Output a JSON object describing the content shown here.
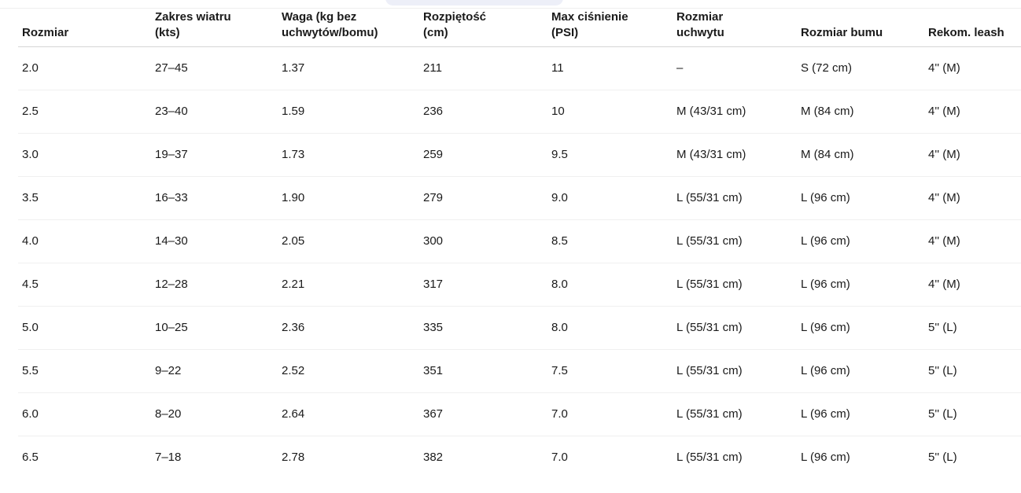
{
  "top_pill": {
    "visible": true
  },
  "table": {
    "columns": [
      {
        "id": "rozmiar",
        "label": "Rozmiar"
      },
      {
        "id": "zakres-wiatru",
        "label": "Zakres wiatru (kts)"
      },
      {
        "id": "waga",
        "label": "Waga (kg bez uchwytów/bomu)"
      },
      {
        "id": "rozpietosc",
        "label": "Rozpiętość (cm)"
      },
      {
        "id": "max-cisnienie",
        "label": "Max ciśnienie (PSI)"
      },
      {
        "id": "rozmiar-uchwytu",
        "label": "Rozmiar uchwytu"
      },
      {
        "id": "rozmiar-bumu",
        "label": "Rozmiar bumu"
      },
      {
        "id": "rekom-leash",
        "label": "Rekom. leash"
      }
    ],
    "rows": [
      [
        "2.0",
        "27–45",
        "1.37",
        "211",
        "11",
        "–",
        "S (72 cm)",
        "4'' (M)"
      ],
      [
        "2.5",
        "23–40",
        "1.59",
        "236",
        "10",
        "M (43/31 cm)",
        "M (84 cm)",
        "4'' (M)"
      ],
      [
        "3.0",
        "19–37",
        "1.73",
        "259",
        "9.5",
        "M (43/31 cm)",
        "M (84 cm)",
        "4'' (M)"
      ],
      [
        "3.5",
        "16–33",
        "1.90",
        "279",
        "9.0",
        "L (55/31 cm)",
        "L (96 cm)",
        "4'' (M)"
      ],
      [
        "4.0",
        "14–30",
        "2.05",
        "300",
        "8.5",
        "L (55/31 cm)",
        "L (96 cm)",
        "4'' (M)"
      ],
      [
        "4.5",
        "12–28",
        "2.21",
        "317",
        "8.0",
        "L (55/31 cm)",
        "L (96 cm)",
        "4'' (M)"
      ],
      [
        "5.0",
        "10–25",
        "2.36",
        "335",
        "8.0",
        "L (55/31 cm)",
        "L (96 cm)",
        "5'' (L)"
      ],
      [
        "5.5",
        "9–22",
        "2.52",
        "351",
        "7.5",
        "L (55/31 cm)",
        "L (96 cm)",
        "5'' (L)"
      ],
      [
        "6.0",
        "8–20",
        "2.64",
        "367",
        "7.0",
        "L (55/31 cm)",
        "L (96 cm)",
        "5'' (L)"
      ],
      [
        "6.5",
        "7–18",
        "2.78",
        "382",
        "7.0",
        "L (55/31 cm)",
        "L (96 cm)",
        "5'' (L)"
      ]
    ]
  },
  "colors": {
    "page-bg": "#ffffff",
    "text": "#1a1a1a",
    "header-rule": "#d6d6d6",
    "row-rule": "#f0f0f0",
    "top-rule": "#efefef",
    "pill-bg": "#edeff8"
  }
}
